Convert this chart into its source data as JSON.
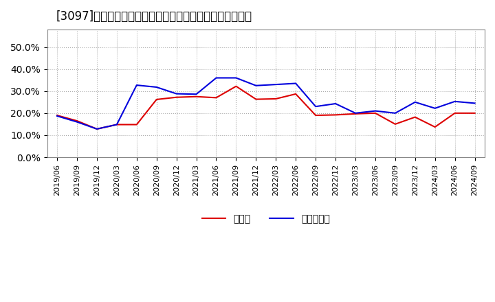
{
  "title": "[3097]　現預金、有利子負債の総資産に対する比率の推移",
  "x_labels": [
    "2019/06",
    "2019/09",
    "2019/12",
    "2020/03",
    "2020/06",
    "2020/09",
    "2020/12",
    "2021/03",
    "2021/06",
    "2021/09",
    "2021/12",
    "2022/03",
    "2022/06",
    "2022/09",
    "2022/12",
    "2023/03",
    "2023/06",
    "2023/09",
    "2023/12",
    "2024/03",
    "2024/06",
    "2024/09"
  ],
  "cash": [
    0.19,
    0.165,
    0.128,
    0.148,
    0.148,
    0.262,
    0.272,
    0.275,
    0.27,
    0.322,
    0.263,
    0.265,
    0.287,
    0.19,
    0.192,
    0.197,
    0.2,
    0.15,
    0.182,
    0.137,
    0.2,
    0.2
  ],
  "interest_bearing_debt": [
    0.187,
    0.16,
    0.128,
    0.148,
    0.327,
    0.318,
    0.288,
    0.286,
    0.36,
    0.36,
    0.325,
    0.33,
    0.335,
    0.23,
    0.243,
    0.2,
    0.21,
    0.2,
    0.25,
    0.222,
    0.253,
    0.245
  ],
  "cash_color": "#dd0000",
  "debt_color": "#0000dd",
  "background_color": "#ffffff",
  "grid_color": "#aaaaaa",
  "ylim": [
    0.0,
    0.58
  ],
  "yticks": [
    0.0,
    0.1,
    0.2,
    0.3,
    0.4,
    0.5
  ],
  "legend_cash": "現預金",
  "legend_debt": "有利子負債",
  "title_fontsize": 12,
  "legend_fontsize": 10,
  "axis_fontsize": 8
}
